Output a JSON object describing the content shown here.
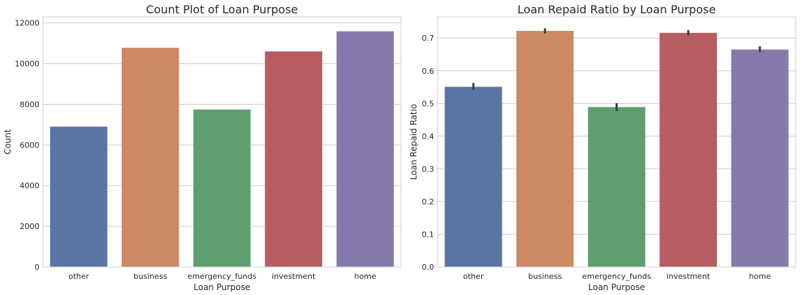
{
  "chart_data": [
    {
      "type": "bar",
      "title": "Count Plot of Loan Purpose",
      "xlabel": "Loan Purpose",
      "ylabel": "Count",
      "categories": [
        "other",
        "business",
        "emergency_funds",
        "investment",
        "home"
      ],
      "values": [
        6900,
        10780,
        7740,
        10600,
        11590
      ],
      "ylim": [
        0,
        12300
      ],
      "yticks": [
        0,
        2000,
        4000,
        6000,
        8000,
        10000,
        12000
      ],
      "ytick_labels": [
        "0",
        "2000",
        "4000",
        "6000",
        "8000",
        "10000",
        "12000"
      ],
      "grid": "horizontal",
      "colors": [
        "#5975a4",
        "#cc8963",
        "#5f9e6e",
        "#b55d60",
        "#857aab"
      ]
    },
    {
      "type": "bar",
      "title": "Loan Repaid Ratio by Loan Purpose",
      "xlabel": "Loan Purpose",
      "ylabel": "Loan Repaid Ratio",
      "categories": [
        "other",
        "business",
        "emergency_funds",
        "investment",
        "home"
      ],
      "values": [
        0.551,
        0.722,
        0.489,
        0.716,
        0.665
      ],
      "error_bars": [
        [
          0.541,
          0.563
        ],
        [
          0.714,
          0.73
        ],
        [
          0.477,
          0.501
        ],
        [
          0.708,
          0.725
        ],
        [
          0.657,
          0.675
        ]
      ],
      "ylim": [
        0,
        0.765
      ],
      "yticks": [
        0.0,
        0.1,
        0.2,
        0.3,
        0.4,
        0.5,
        0.6,
        0.7
      ],
      "ytick_labels": [
        "0.0",
        "0.1",
        "0.2",
        "0.3",
        "0.4",
        "0.5",
        "0.6",
        "0.7"
      ],
      "grid": "horizontal",
      "colors": [
        "#5975a4",
        "#cc8963",
        "#5f9e6e",
        "#b55d60",
        "#857aab"
      ]
    }
  ]
}
